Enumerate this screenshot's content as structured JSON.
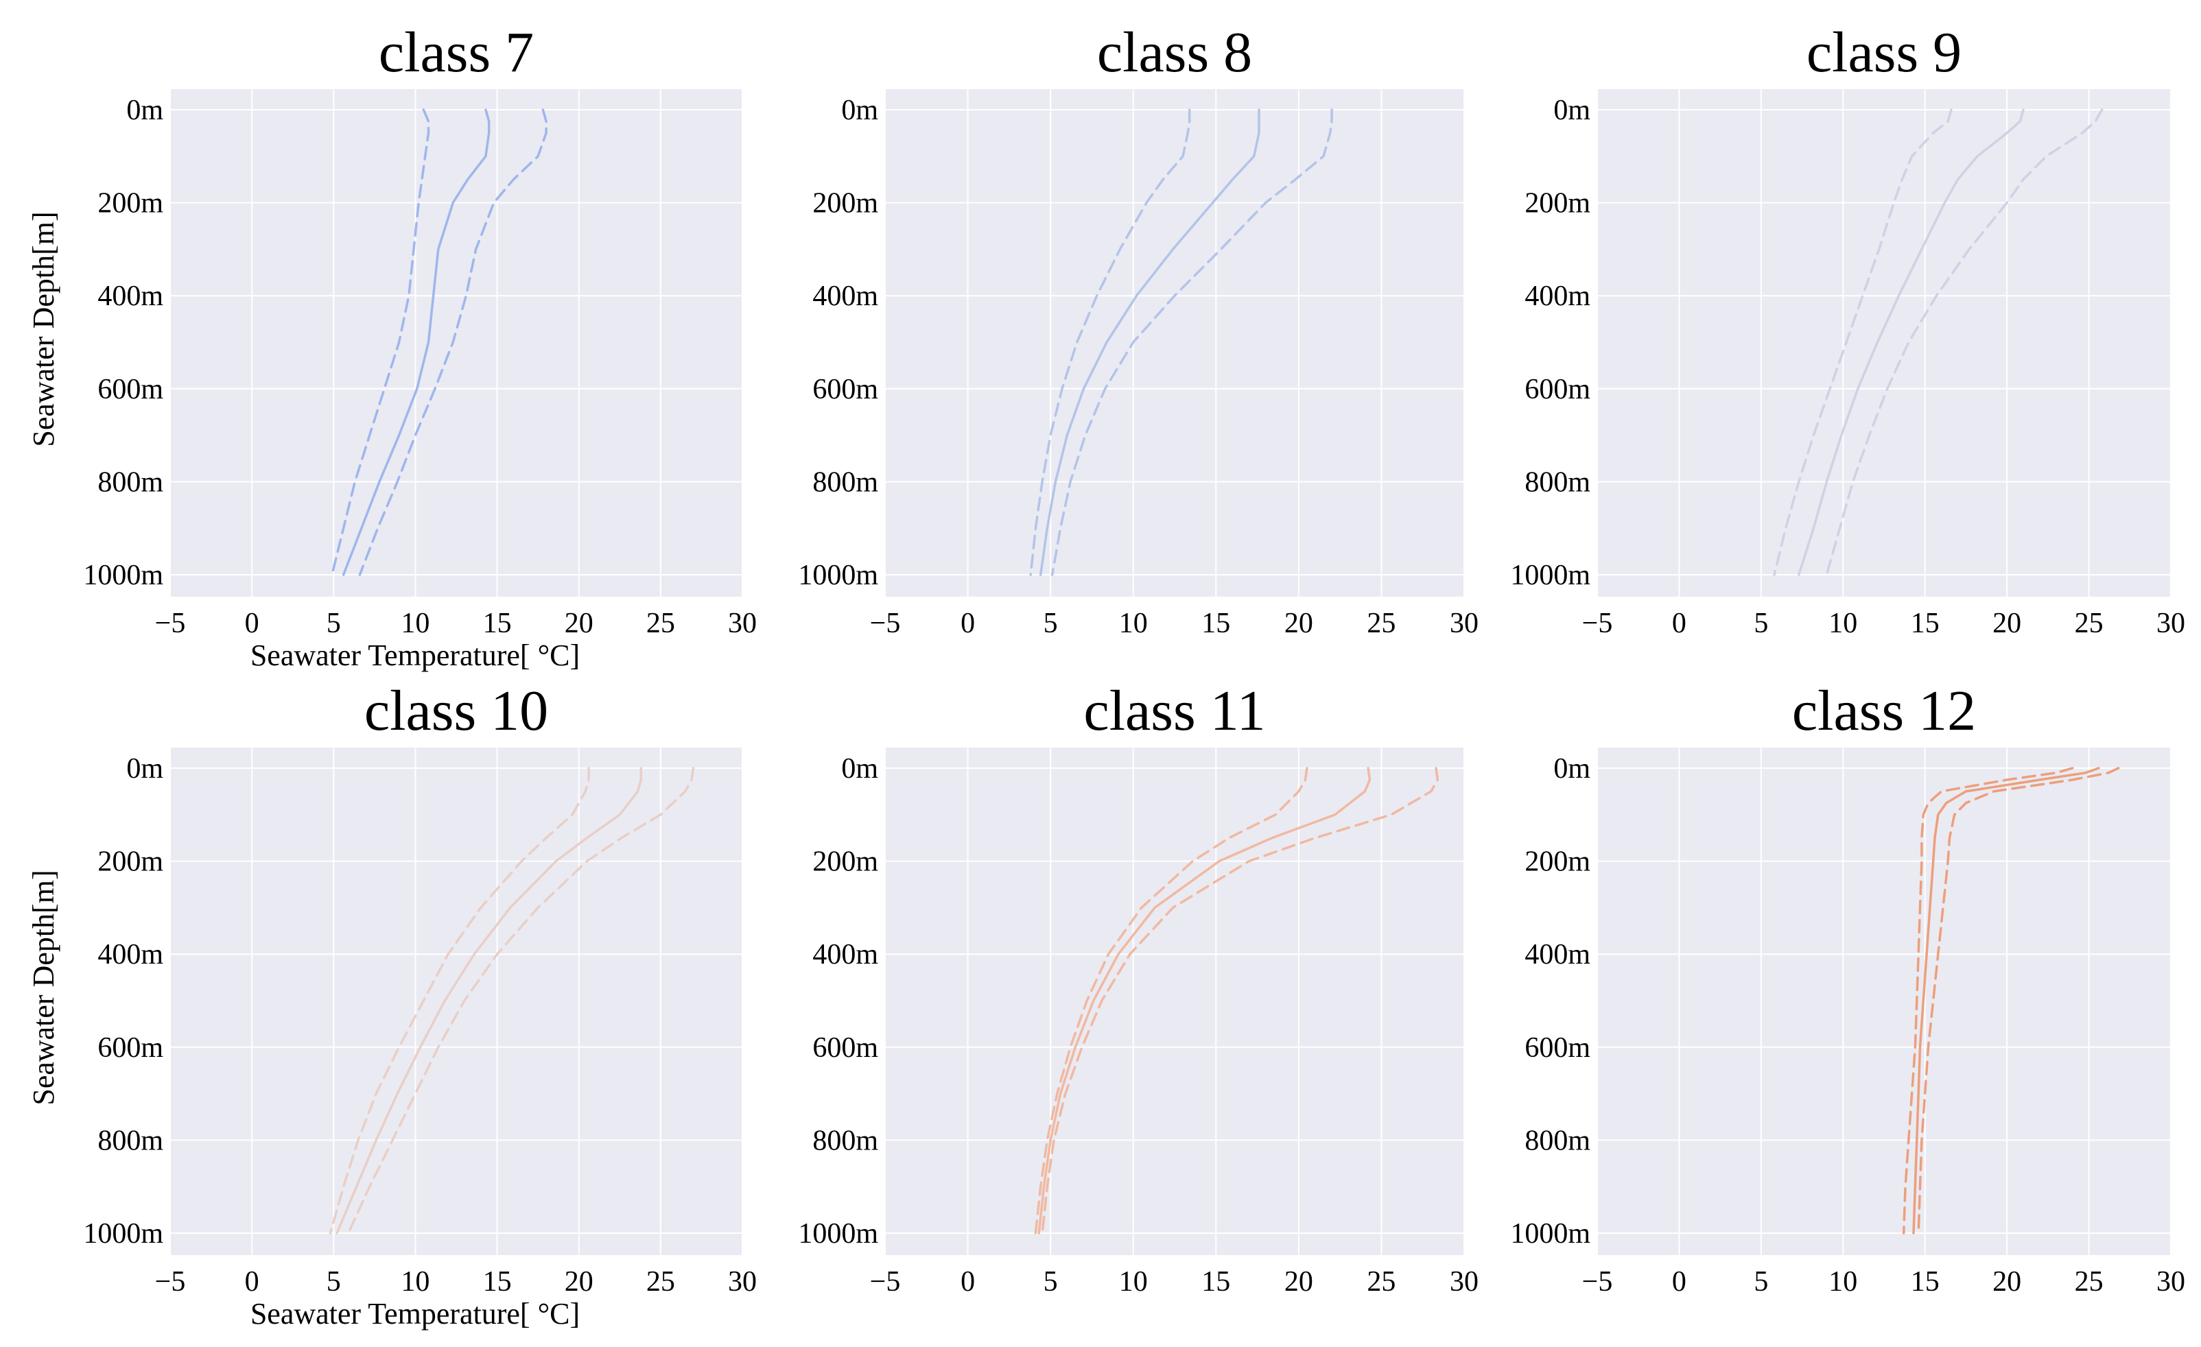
{
  "figure": {
    "background": "#ffffff",
    "plot_background": "#eaeaf2",
    "grid_color": "#ffffff"
  },
  "chart_data": [
    {
      "type": "line",
      "title": "class 7",
      "xlabel": "Seawater Temperature[ °C]",
      "ylabel": "Seawater Depth[m]",
      "xlim": [
        -5,
        30
      ],
      "ylim": [
        1000,
        0
      ],
      "x_ticks": [
        -5,
        0,
        5,
        10,
        15,
        20,
        25,
        30
      ],
      "x_tick_labels": [
        "−5",
        "0",
        "5",
        "10",
        "15",
        "20",
        "25",
        "30"
      ],
      "y_ticks": [
        0,
        200,
        400,
        600,
        800,
        1000
      ],
      "y_tick_labels": [
        "0m",
        "200m",
        "400m",
        "600m",
        "800m",
        "1000m"
      ],
      "color": "#9fb6ec",
      "depth": [
        0,
        25,
        50,
        100,
        150,
        200,
        300,
        400,
        500,
        600,
        700,
        800,
        900,
        1000
      ],
      "series": [
        {
          "style": "dashed",
          "values": [
            10.5,
            10.8,
            10.8,
            10.6,
            10.4,
            10.2,
            9.9,
            9.6,
            9.0,
            8.1,
            7.2,
            6.3,
            5.6,
            4.9
          ]
        },
        {
          "style": "solid",
          "values": [
            14.3,
            14.5,
            14.5,
            14.3,
            13.2,
            12.3,
            11.4,
            11.1,
            10.8,
            10.1,
            9.0,
            7.8,
            6.7,
            5.6
          ]
        },
        {
          "style": "dashed",
          "values": [
            17.8,
            18.0,
            18.0,
            17.5,
            16.0,
            14.8,
            13.7,
            13.1,
            12.3,
            11.2,
            10.0,
            8.9,
            7.7,
            6.6
          ]
        }
      ]
    },
    {
      "type": "line",
      "title": "class 8",
      "xlabel": "",
      "ylabel": "",
      "xlim": [
        -5,
        30
      ],
      "ylim": [
        1000,
        0
      ],
      "x_ticks": [
        -5,
        0,
        5,
        10,
        15,
        20,
        25,
        30
      ],
      "x_tick_labels": [
        "−5",
        "0",
        "5",
        "10",
        "15",
        "20",
        "25",
        "30"
      ],
      "y_ticks": [
        0,
        200,
        400,
        600,
        800,
        1000
      ],
      "y_tick_labels": [
        "0m",
        "200m",
        "400m",
        "600m",
        "800m",
        "1000m"
      ],
      "color": "#b3c4e8",
      "depth": [
        0,
        25,
        50,
        100,
        150,
        200,
        300,
        400,
        500,
        600,
        700,
        800,
        900,
        1000
      ],
      "series": [
        {
          "style": "dashed",
          "values": [
            13.4,
            13.4,
            13.3,
            13.0,
            11.8,
            10.8,
            9.2,
            7.8,
            6.6,
            5.7,
            5.0,
            4.5,
            4.1,
            3.8
          ]
        },
        {
          "style": "solid",
          "values": [
            17.6,
            17.6,
            17.6,
            17.3,
            16.0,
            14.8,
            12.4,
            10.2,
            8.4,
            7.0,
            6.0,
            5.3,
            4.8,
            4.4
          ]
        },
        {
          "style": "dashed",
          "values": [
            22.0,
            22.0,
            21.9,
            21.5,
            19.8,
            18.0,
            15.3,
            12.5,
            10.0,
            8.3,
            7.1,
            6.2,
            5.6,
            5.1
          ]
        }
      ]
    },
    {
      "type": "line",
      "title": "class 9",
      "xlabel": "",
      "ylabel": "",
      "xlim": [
        -5,
        30
      ],
      "ylim": [
        1000,
        0
      ],
      "x_ticks": [
        -5,
        0,
        5,
        10,
        15,
        20,
        25,
        30
      ],
      "x_tick_labels": [
        "−5",
        "0",
        "5",
        "10",
        "15",
        "20",
        "25",
        "30"
      ],
      "y_ticks": [
        0,
        200,
        400,
        600,
        800,
        1000
      ],
      "y_tick_labels": [
        "0m",
        "200m",
        "400m",
        "600m",
        "800m",
        "1000m"
      ],
      "color": "#cfd1e4",
      "depth": [
        0,
        25,
        50,
        100,
        150,
        200,
        300,
        400,
        500,
        600,
        700,
        800,
        900,
        1000
      ],
      "series": [
        {
          "style": "dashed",
          "values": [
            16.6,
            16.4,
            15.5,
            14.2,
            13.6,
            13.1,
            12.2,
            11.2,
            10.2,
            9.2,
            8.2,
            7.3,
            6.5,
            5.8
          ]
        },
        {
          "style": "solid",
          "values": [
            21.0,
            20.8,
            20.0,
            18.2,
            17.0,
            16.2,
            14.8,
            13.4,
            12.1,
            10.9,
            9.9,
            9.0,
            8.2,
            7.3
          ]
        },
        {
          "style": "dashed",
          "values": [
            25.8,
            25.4,
            24.6,
            22.4,
            21.0,
            20.0,
            17.7,
            15.7,
            14.0,
            12.7,
            11.6,
            10.6,
            9.8,
            9.0
          ]
        }
      ]
    },
    {
      "type": "line",
      "title": "class 10",
      "xlabel": "Seawater Temperature[ °C]",
      "ylabel": "Seawater Depth[m]",
      "xlim": [
        -5,
        30
      ],
      "ylim": [
        1000,
        0
      ],
      "x_ticks": [
        -5,
        0,
        5,
        10,
        15,
        20,
        25,
        30
      ],
      "x_tick_labels": [
        "−5",
        "0",
        "5",
        "10",
        "15",
        "20",
        "25",
        "30"
      ],
      "y_ticks": [
        0,
        200,
        400,
        600,
        800,
        1000
      ],
      "y_tick_labels": [
        "0m",
        "200m",
        "400m",
        "600m",
        "800m",
        "1000m"
      ],
      "color": "#e8cfc6",
      "depth": [
        0,
        25,
        50,
        100,
        150,
        200,
        300,
        400,
        500,
        600,
        700,
        800,
        900,
        1000
      ],
      "series": [
        {
          "style": "dashed",
          "values": [
            20.6,
            20.6,
            20.4,
            19.6,
            18.0,
            16.5,
            14.0,
            12.0,
            10.5,
            9.0,
            7.6,
            6.5,
            5.6,
            4.8
          ]
        },
        {
          "style": "solid",
          "values": [
            23.8,
            23.8,
            23.6,
            22.5,
            20.5,
            18.6,
            15.8,
            13.6,
            11.8,
            10.3,
            8.9,
            7.6,
            6.4,
            5.2
          ]
        },
        {
          "style": "dashed",
          "values": [
            27.0,
            26.9,
            26.5,
            25.0,
            22.6,
            20.5,
            17.5,
            15.0,
            13.0,
            11.4,
            10.0,
            8.6,
            7.2,
            5.9
          ]
        }
      ]
    },
    {
      "type": "line",
      "title": "class 11",
      "xlabel": "",
      "ylabel": "",
      "xlim": [
        -5,
        30
      ],
      "ylim": [
        1000,
        0
      ],
      "x_ticks": [
        -5,
        0,
        5,
        10,
        15,
        20,
        25,
        30
      ],
      "x_tick_labels": [
        "−5",
        "0",
        "5",
        "10",
        "15",
        "20",
        "25",
        "30"
      ],
      "y_ticks": [
        0,
        200,
        400,
        600,
        800,
        1000
      ],
      "y_tick_labels": [
        "0m",
        "200m",
        "400m",
        "600m",
        "800m",
        "1000m"
      ],
      "color": "#f0b9a1",
      "depth": [
        0,
        25,
        50,
        100,
        150,
        200,
        300,
        400,
        500,
        600,
        700,
        800,
        900,
        1000
      ],
      "series": [
        {
          "style": "dashed",
          "values": [
            20.5,
            20.4,
            20.0,
            18.6,
            15.8,
            13.6,
            10.5,
            8.5,
            7.2,
            6.2,
            5.4,
            4.8,
            4.4,
            4.1
          ]
        },
        {
          "style": "solid",
          "values": [
            24.2,
            24.3,
            24.0,
            22.2,
            18.4,
            15.2,
            11.3,
            9.1,
            7.6,
            6.5,
            5.6,
            5.0,
            4.6,
            4.3
          ]
        },
        {
          "style": "dashed",
          "values": [
            28.3,
            28.4,
            28.0,
            25.6,
            21.0,
            17.0,
            12.4,
            9.8,
            8.1,
            6.9,
            5.9,
            5.2,
            4.8,
            4.5
          ]
        }
      ]
    },
    {
      "type": "line",
      "title": "class 12",
      "xlabel": "",
      "ylabel": "",
      "xlim": [
        -5,
        30
      ],
      "ylim": [
        1000,
        0
      ],
      "x_ticks": [
        -5,
        0,
        5,
        10,
        15,
        20,
        25,
        30
      ],
      "x_tick_labels": [
        "−5",
        "0",
        "5",
        "10",
        "15",
        "20",
        "25",
        "30"
      ],
      "y_ticks": [
        0,
        200,
        400,
        600,
        800,
        1000
      ],
      "y_tick_labels": [
        "0m",
        "200m",
        "400m",
        "600m",
        "800m",
        "1000m"
      ],
      "color": "#ec9f7c",
      "depth": [
        0,
        10,
        25,
        50,
        75,
        100,
        150,
        200,
        300,
        400,
        500,
        600,
        700,
        800,
        900,
        1000
      ],
      "series": [
        {
          "style": "dashed",
          "values": [
            24.0,
            23.0,
            20.0,
            16.0,
            15.2,
            14.9,
            14.8,
            14.8,
            14.7,
            14.6,
            14.5,
            14.4,
            14.2,
            14.0,
            13.8,
            13.7
          ]
        },
        {
          "style": "solid",
          "values": [
            25.6,
            24.8,
            22.0,
            17.5,
            16.3,
            15.8,
            15.6,
            15.5,
            15.3,
            15.1,
            14.9,
            14.7,
            14.6,
            14.5,
            14.4,
            14.3
          ]
        },
        {
          "style": "dashed",
          "values": [
            26.8,
            26.2,
            24.0,
            19.2,
            17.5,
            16.8,
            16.5,
            16.4,
            16.1,
            15.8,
            15.5,
            15.2,
            15.0,
            14.8,
            14.7,
            14.6
          ]
        }
      ]
    }
  ]
}
